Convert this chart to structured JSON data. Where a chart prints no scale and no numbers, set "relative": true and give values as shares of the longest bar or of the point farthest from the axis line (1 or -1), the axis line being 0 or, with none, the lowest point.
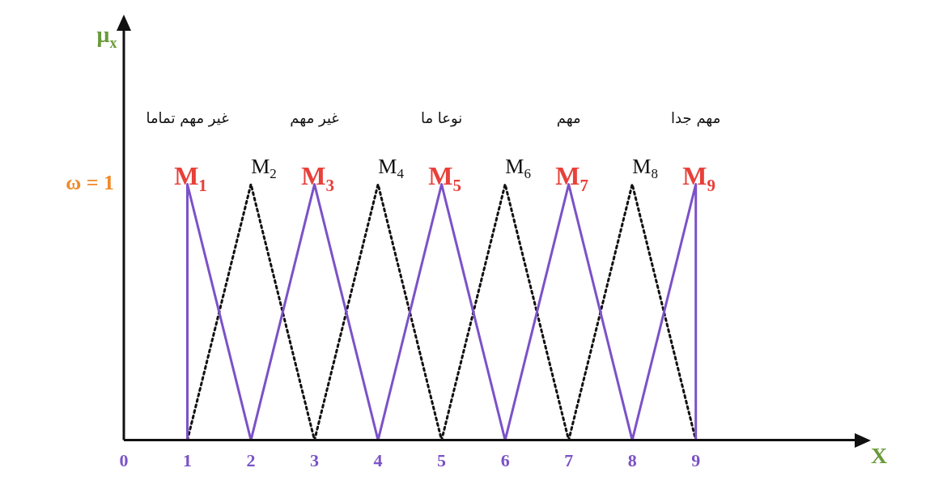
{
  "chart_data": {
    "type": "line",
    "xlabel": "X",
    "relative": true,
    "xlim": [
      0,
      11.5
    ],
    "xticks": [
      0,
      1,
      2,
      3,
      4,
      5,
      6,
      7,
      8,
      9
    ],
    "grid": false,
    "legend": false,
    "marker": "none",
    "series": [
      {
        "color": "#7b52c8",
        "line_style": "solid",
        "x": [
          1,
          1,
          2,
          3,
          4,
          5,
          6,
          7,
          8,
          9,
          9
        ],
        "values": [
          0,
          1,
          0,
          1,
          0,
          1,
          0,
          1,
          0,
          1,
          0
        ]
      },
      {
        "color": "#111111",
        "line_style": "dotted",
        "x": [
          1,
          2,
          3,
          4,
          5,
          6,
          7,
          8,
          9
        ],
        "values": [
          0,
          1,
          0,
          1,
          0,
          1,
          0,
          1,
          0
        ]
      }
    ],
    "annotations": [
      "μ$_{x}$",
      "ω = 1",
      "غير مهم تماما",
      "غير مهم",
      "نوعا ما",
      "مهم",
      "مهم جدا",
      {
        "text": "M$_{1}$",
        "x": 1,
        "y": 1
      },
      {
        "text": "M$_{2}$",
        "x": 2,
        "y": 1
      },
      {
        "text": "M$_{3}$",
        "x": 3,
        "y": 1
      },
      {
        "text": "M$_{4}$",
        "x": 4,
        "y": 1
      },
      {
        "text": "M$_{5}$",
        "x": 5,
        "y": 1
      },
      {
        "text": "M$_{6}$",
        "x": 6,
        "y": 1
      },
      {
        "text": "M$_{7}$",
        "x": 7,
        "y": 1
      },
      {
        "text": "M$_{8}$",
        "x": 8,
        "y": 1
      },
      {
        "text": "M$_{9}$",
        "x": 9,
        "y": 1
      }
    ]
  }
}
